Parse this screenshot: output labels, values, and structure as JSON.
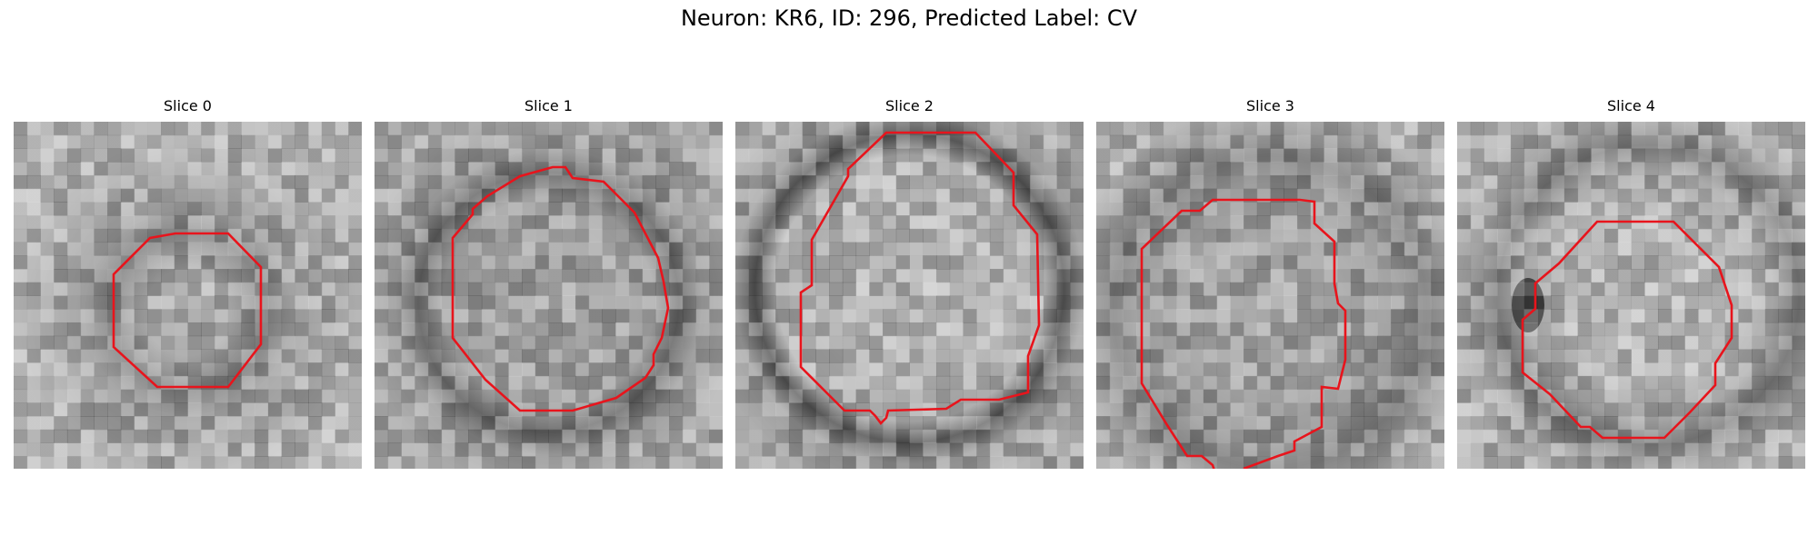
{
  "figure": {
    "title": "Neuron: KR6, ID: 296, Predicted Label: CV"
  },
  "slices": [
    {
      "label": "Slice 0",
      "contour_color": "#e8141c",
      "image": "grayscale EM micrograph patch with small dark ring"
    },
    {
      "label": "Slice 1",
      "contour_color": "#e8141c",
      "image": "grayscale EM micrograph patch with dark membrane ring"
    },
    {
      "label": "Slice 2",
      "contour_color": "#e8141c",
      "image": "grayscale EM micrograph patch with large bright vesicle"
    },
    {
      "label": "Slice 3",
      "contour_color": "#e8141c",
      "image": "grayscale EM micrograph patch with textured interior"
    },
    {
      "label": "Slice 4",
      "contour_color": "#e8141c",
      "image": "grayscale EM micrograph patch with bright vesicle"
    }
  ]
}
